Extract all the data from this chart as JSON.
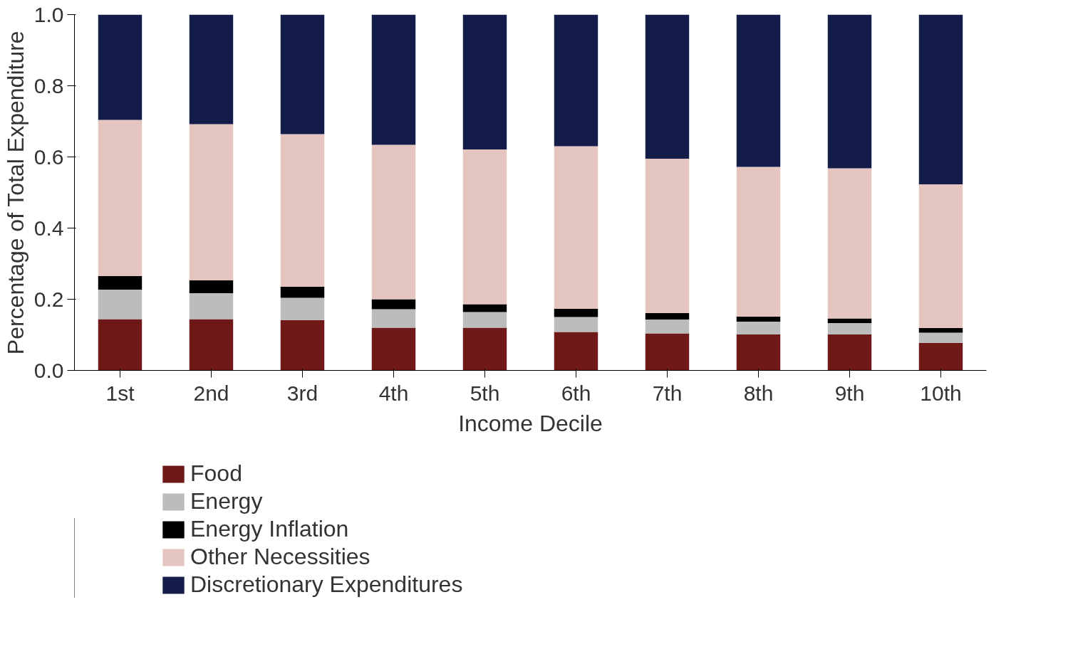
{
  "chart_data": {
    "type": "bar",
    "stacked": true,
    "xlabel": "Income Decile",
    "ylabel": "Percentage of Total Expenditure",
    "categories": [
      "1st",
      "2nd",
      "3rd",
      "4th",
      "5th",
      "6th",
      "7th",
      "8th",
      "9th",
      "10th"
    ],
    "series": [
      {
        "name": "Food",
        "color": "#6f1818",
        "values": [
          0.144,
          0.144,
          0.141,
          0.12,
          0.12,
          0.108,
          0.104,
          0.101,
          0.101,
          0.077
        ]
      },
      {
        "name": "Energy",
        "color": "#bcbcbc",
        "values": [
          0.083,
          0.073,
          0.063,
          0.052,
          0.044,
          0.042,
          0.039,
          0.036,
          0.032,
          0.029
        ]
      },
      {
        "name": "Energy Inflation",
        "color": "#000000",
        "values": [
          0.038,
          0.036,
          0.031,
          0.028,
          0.022,
          0.023,
          0.018,
          0.014,
          0.013,
          0.013
        ]
      },
      {
        "name": "Other Necessities",
        "color": "#e5c5c0",
        "values": [
          0.439,
          0.439,
          0.429,
          0.434,
          0.435,
          0.457,
          0.434,
          0.421,
          0.422,
          0.404
        ]
      },
      {
        "name": "Discretionary Expenditures",
        "color": "#141c4a",
        "values": [
          0.296,
          0.308,
          0.336,
          0.366,
          0.379,
          0.37,
          0.405,
          0.428,
          0.432,
          0.477
        ]
      }
    ],
    "ylim": [
      0,
      1.0
    ],
    "yticks": [
      {
        "value": 0,
        "label": "0.0"
      },
      {
        "value": 0.2,
        "label": "0.2"
      },
      {
        "value": 0.4,
        "label": "0.4"
      },
      {
        "value": 0.6,
        "label": "0.6"
      },
      {
        "value": 0.8,
        "label": "0.8"
      },
      {
        "value": 1.0,
        "label": "1.0"
      }
    ],
    "grid": false,
    "legend": "bottom"
  }
}
